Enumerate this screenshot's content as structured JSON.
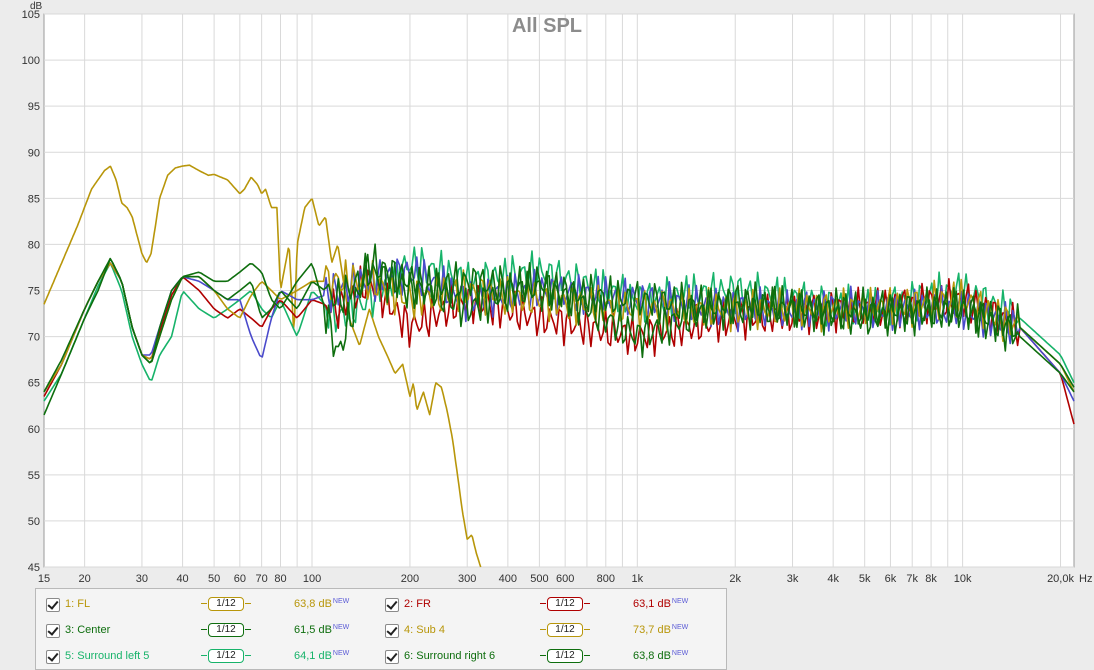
{
  "chart_data": {
    "type": "line",
    "title": "All SPL",
    "ylabel": "dB",
    "xunit": "Hz",
    "xscale": "log",
    "xlim": [
      15,
      22000
    ],
    "ylim": [
      45,
      105
    ],
    "yticks": [
      45,
      50,
      55,
      60,
      65,
      70,
      75,
      80,
      85,
      90,
      95,
      100,
      105
    ],
    "xticks": [
      15,
      20,
      30,
      40,
      50,
      60,
      70,
      80,
      100,
      200,
      300,
      400,
      500,
      600,
      800,
      1000,
      2000,
      3000,
      4000,
      5000,
      6000,
      7000,
      8000,
      10000,
      20000
    ],
    "xtick_labels": [
      "15",
      "20",
      "30",
      "40",
      "50",
      "60",
      "70",
      "80",
      "100",
      "200",
      "300",
      "400",
      "500",
      "600",
      "800",
      "1k",
      "2k",
      "3k",
      "4k",
      "5k",
      "6k",
      "7k",
      "8k",
      "10k",
      "20,0k"
    ],
    "grid": true,
    "series": [
      {
        "name": "1: FL",
        "color": "#b8960a",
        "smoothing": "1/12",
        "level": "63,8 dB",
        "x": [
          15,
          17,
          20,
          22,
          24,
          26,
          28,
          30,
          32,
          34,
          37,
          40,
          45,
          50,
          55,
          60,
          65,
          70,
          75,
          80,
          90,
          100,
          120,
          150,
          200,
          300,
          500,
          1000,
          2000,
          5000,
          10000,
          15000,
          20000,
          22000
        ],
        "y": [
          64,
          67,
          73,
          76,
          78,
          76,
          71,
          68,
          67.5,
          70,
          74,
          76.5,
          76.5,
          75,
          73,
          72,
          74.5,
          76,
          75,
          74,
          75,
          76,
          76,
          76,
          74,
          75,
          74,
          73,
          73,
          73,
          74,
          71,
          67,
          64
        ]
      },
      {
        "name": "2: FR",
        "color": "#b00000",
        "smoothing": "1/12",
        "level": "63,1 dB",
        "x": [
          15,
          17,
          20,
          22,
          24,
          26,
          28,
          30,
          32,
          34,
          37,
          40,
          45,
          50,
          55,
          60,
          65,
          70,
          75,
          80,
          90,
          100,
          120,
          150,
          200,
          300,
          500,
          1000,
          2000,
          5000,
          10000,
          15000,
          20000,
          22000
        ],
        "y": [
          63.5,
          67,
          73,
          76,
          78,
          76,
          71,
          68,
          67.5,
          70.5,
          74.5,
          76.5,
          75,
          73,
          72,
          73,
          72,
          71,
          73,
          74,
          72,
          74,
          73,
          76,
          71,
          74,
          72,
          70,
          72,
          73,
          74,
          71,
          66,
          60.5
        ]
      },
      {
        "name": "3: Center",
        "color": "#0e6e0e",
        "smoothing": "1/12",
        "level": "61,5 dB",
        "x": [
          15,
          17,
          20,
          22,
          24,
          26,
          28,
          30,
          32,
          34,
          37,
          40,
          45,
          50,
          55,
          60,
          65,
          70,
          75,
          80,
          90,
          100,
          120,
          150,
          200,
          300,
          500,
          1000,
          2000,
          5000,
          10000,
          15000,
          20000,
          22000
        ],
        "y": [
          61.5,
          66,
          72,
          75,
          78.5,
          76,
          71,
          68,
          67,
          71,
          75,
          76.5,
          77,
          76,
          76,
          77,
          78,
          77,
          74,
          73,
          76,
          78,
          68,
          78,
          76,
          73,
          76,
          70,
          74,
          72,
          73,
          70,
          66,
          64
        ]
      },
      {
        "name": "4: Sub 4",
        "color": "#b8960a",
        "smoothing": "1/12",
        "level": "73,7 dB",
        "x": [
          15,
          17,
          19,
          21,
          23,
          24,
          25,
          26,
          27,
          28,
          30,
          31,
          32,
          33,
          34,
          36,
          38,
          40,
          42,
          45,
          48,
          50,
          55,
          60,
          62,
          65,
          68,
          70,
          72,
          75,
          78,
          80,
          85,
          88,
          90,
          95,
          100,
          105,
          110,
          115,
          120,
          130,
          140,
          150,
          160,
          170,
          180,
          190,
          200,
          205,
          210,
          220,
          230,
          240,
          250,
          260,
          270,
          280,
          290,
          300,
          310,
          320,
          330
        ],
        "y": [
          73.5,
          78,
          82,
          86,
          88,
          88.5,
          87,
          84.5,
          84,
          83,
          79,
          78,
          79,
          82,
          85,
          87.5,
          88.3,
          88.5,
          88.6,
          88,
          87.5,
          87.6,
          87,
          85.5,
          86,
          87.3,
          86.5,
          85.5,
          86,
          84,
          84,
          75,
          80,
          70,
          80,
          84,
          85,
          82,
          83,
          78,
          80,
          72,
          69,
          73,
          70,
          68,
          66,
          67,
          63.5,
          65,
          62,
          64,
          61.5,
          65,
          64.5,
          62,
          59,
          55,
          51,
          48,
          48.5,
          46.5,
          45
        ]
      },
      {
        "name": "5: Surround left 5",
        "color": "#17b36a",
        "smoothing": "1/12",
        "level": "64,1 dB",
        "x": [
          15,
          17,
          20,
          22,
          24,
          26,
          28,
          30,
          32,
          34,
          37,
          40,
          45,
          50,
          55,
          60,
          65,
          70,
          75,
          80,
          90,
          100,
          120,
          150,
          200,
          300,
          500,
          1000,
          2000,
          5000,
          10000,
          15000,
          20000,
          22000
        ],
        "y": [
          63,
          66,
          72,
          75.5,
          78,
          75,
          70,
          67,
          65,
          68,
          70,
          75,
          73,
          72,
          73,
          74,
          75,
          73,
          72,
          74,
          70,
          75,
          72,
          74,
          78,
          76,
          77,
          74,
          75,
          73,
          75,
          72,
          68,
          65
        ]
      },
      {
        "name": "6: Surround right 6",
        "color": "#0e6e0e",
        "smoothing": "1/12",
        "level": "63,8 dB",
        "x": [
          15,
          17,
          20,
          22,
          24,
          26,
          28,
          30,
          32,
          34,
          37,
          40,
          45,
          50,
          55,
          60,
          65,
          70,
          75,
          80,
          90,
          100,
          120,
          150,
          200,
          300,
          500,
          1000,
          2000,
          5000,
          10000,
          15000,
          20000,
          22000
        ],
        "y": [
          64,
          67.5,
          73,
          76,
          78.5,
          76,
          71,
          68,
          67,
          70,
          74,
          76.5,
          76.5,
          75,
          74,
          75,
          76,
          72,
          73,
          75,
          73,
          76,
          74,
          77,
          75,
          76,
          75,
          74,
          73,
          73,
          73,
          71,
          67,
          64.5
        ]
      },
      {
        "color": "#4a4acb",
        "x": [
          15,
          17,
          20,
          22,
          24,
          26,
          28,
          30,
          32,
          34,
          37,
          40,
          45,
          50,
          55,
          60,
          65,
          70,
          75,
          80,
          90,
          100,
          120,
          150,
          200,
          300,
          500,
          1000,
          2000,
          5000,
          10000,
          15000,
          20000,
          22000
        ],
        "y": [
          64,
          67,
          73,
          76,
          78,
          76,
          71,
          68,
          68,
          71,
          75,
          76.5,
          76,
          75,
          74,
          74,
          70,
          67.5,
          72,
          75,
          74,
          74,
          75,
          76,
          77,
          74,
          75,
          74,
          73,
          73,
          73,
          71,
          66,
          63
        ]
      }
    ]
  }
}
